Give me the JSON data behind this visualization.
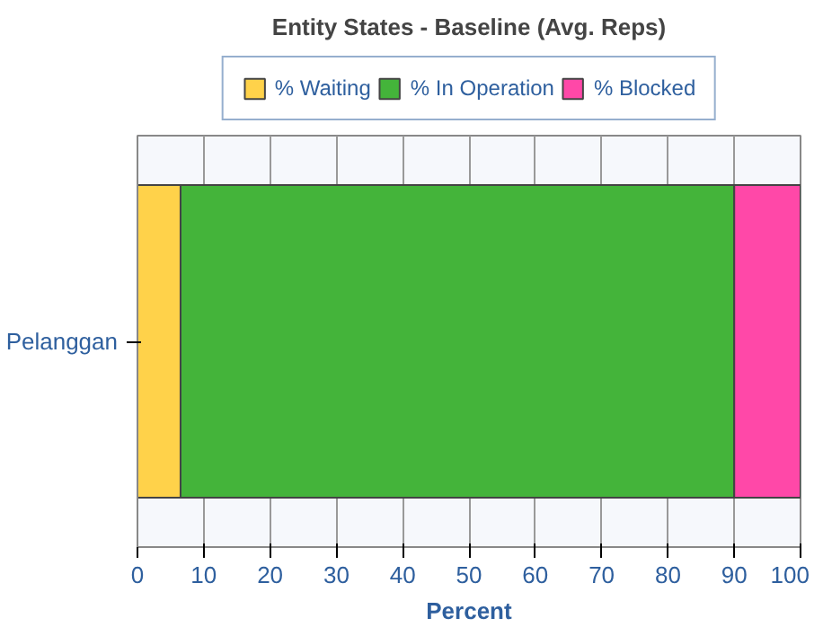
{
  "chart_data": {
    "type": "bar",
    "orientation": "horizontal",
    "stacked": true,
    "title": "Entity States - Baseline (Avg. Reps)",
    "xlabel": "Percent",
    "categories": [
      "Pelanggan"
    ],
    "series": [
      {
        "name": "% Waiting",
        "color": "#ffd24a",
        "values": [
          6.5
        ]
      },
      {
        "name": "% In Operation",
        "color": "#44b43a",
        "values": [
          83.5
        ]
      },
      {
        "name": "% Blocked",
        "color": "#ff48a8",
        "values": [
          10
        ]
      }
    ],
    "xlim": [
      0,
      100
    ],
    "xticks": [
      0,
      10,
      20,
      30,
      40,
      50,
      60,
      70,
      80,
      90,
      100
    ],
    "grid": "x",
    "legend": "top"
  }
}
